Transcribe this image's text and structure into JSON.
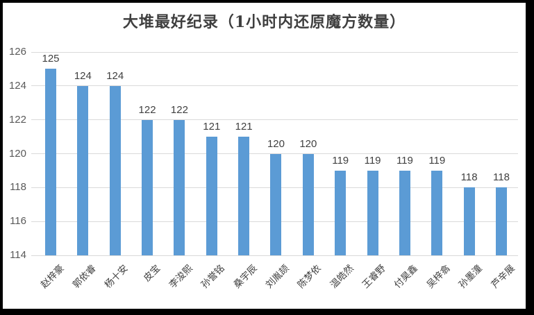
{
  "chart_data": {
    "type": "bar",
    "title": "大堆最好纪录（1小时内还原魔方数量）",
    "categories": [
      "赵梓豪",
      "郭依睿",
      "杨十安",
      "皮宝",
      "李浚熙",
      "孙誉铭",
      "桑宇辰",
      "刘胤颉",
      "陈梦依",
      "温皓然",
      "王睿野",
      "付昊鑫",
      "吴梓翕",
      "孙墨潼",
      "芦辛展"
    ],
    "values": [
      125,
      124,
      124,
      122,
      122,
      121,
      121,
      120,
      120,
      119,
      119,
      119,
      119,
      118,
      118
    ],
    "data_labels": [
      "125",
      "124",
      "124",
      "122",
      "122",
      "121",
      "121",
      "120",
      "120",
      "119",
      "119",
      "119",
      "119",
      "118",
      "118"
    ],
    "xlabel": "",
    "ylabel": "",
    "ylim": [
      114,
      126
    ],
    "yticks": [
      126,
      124,
      122,
      120,
      118,
      116,
      114
    ],
    "grid": true,
    "legend": false,
    "bar_color": "#5b9bd5",
    "gridline_color": "#d9d9d9",
    "title_color": "#3f3f3f",
    "value_label_color": "#404040",
    "axis_tick_color": "#595959",
    "frame_color": "#000000",
    "background_color": "#ffffff"
  }
}
